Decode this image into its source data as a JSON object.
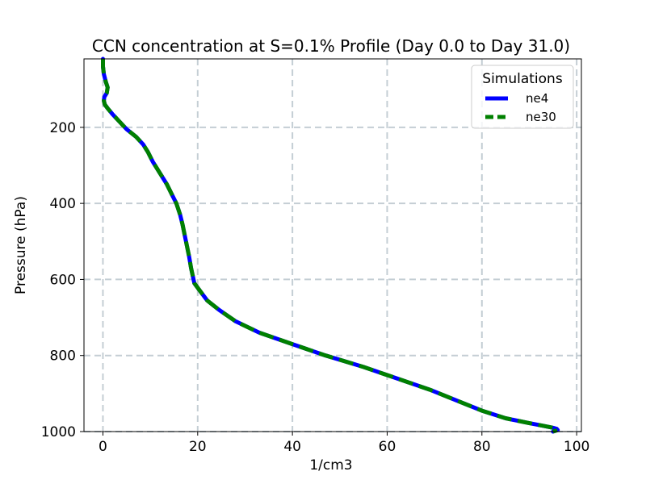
{
  "chart_data": {
    "type": "line",
    "title": "CCN concentration at S=0.1% Profile (Day 0.0 to Day 31.0)",
    "xlabel": "1/cm3",
    "ylabel": "Pressure (hPa)",
    "xlim": [
      -4,
      101
    ],
    "ylim": [
      1000,
      20
    ],
    "y_inverted": true,
    "grid": true,
    "xticks": [
      0,
      20,
      40,
      60,
      80,
      100
    ],
    "yticks": [
      200,
      400,
      600,
      800,
      1000
    ],
    "legend": {
      "title": "Simulations",
      "position": "upper right"
    },
    "series": [
      {
        "name": "ne4",
        "color": "#0000ff",
        "style": "solid",
        "x": [
          0.0,
          0.0,
          0.2,
          0.6,
          1.0,
          0.8,
          0.3,
          0.2,
          0.4,
          1.0,
          2.0,
          3.5,
          5.0,
          7.0,
          8.5,
          9.5,
          10.5,
          12.0,
          13.5,
          14.5,
          15.5,
          16.3,
          16.8,
          17.2,
          17.7,
          18.2,
          18.6,
          19.3,
          20.5,
          22.0,
          24.5,
          28.0,
          33.0,
          40.0,
          47.0,
          55.0,
          62.0,
          69.0,
          75.0,
          80.0,
          85.0,
          90.0,
          93.0,
          95.0,
          95.8,
          96.0,
          95.0
        ],
        "y": [
          20,
          40,
          60,
          80,
          95,
          110,
          120,
          130,
          140,
          150,
          165,
          185,
          205,
          225,
          245,
          265,
          290,
          320,
          350,
          375,
          400,
          430,
          455,
          480,
          510,
          540,
          570,
          610,
          630,
          655,
          680,
          710,
          740,
          770,
          800,
          830,
          860,
          890,
          920,
          945,
          965,
          978,
          985,
          990,
          993,
          996,
          1000
        ]
      },
      {
        "name": "ne30",
        "color": "#008000",
        "style": "dashed",
        "x": [
          0.0,
          0.0,
          0.2,
          0.6,
          1.0,
          0.8,
          0.3,
          0.2,
          0.4,
          1.0,
          2.0,
          3.5,
          5.0,
          7.0,
          8.5,
          9.5,
          10.5,
          12.0,
          13.5,
          14.5,
          15.5,
          16.3,
          16.8,
          17.2,
          17.7,
          18.2,
          18.6,
          19.3,
          20.5,
          22.0,
          24.5,
          28.0,
          33.0,
          40.0,
          47.0,
          55.0,
          62.0,
          69.0,
          75.0,
          80.0,
          85.0,
          90.0,
          93.0,
          95.0,
          95.8,
          96.0,
          95.0
        ],
        "y": [
          20,
          40,
          60,
          80,
          95,
          110,
          120,
          130,
          140,
          150,
          165,
          185,
          205,
          225,
          245,
          265,
          290,
          320,
          350,
          375,
          400,
          430,
          455,
          480,
          510,
          540,
          570,
          610,
          630,
          655,
          680,
          710,
          740,
          770,
          800,
          830,
          860,
          890,
          920,
          945,
          965,
          978,
          985,
          990,
          993,
          996,
          1000
        ]
      }
    ]
  }
}
